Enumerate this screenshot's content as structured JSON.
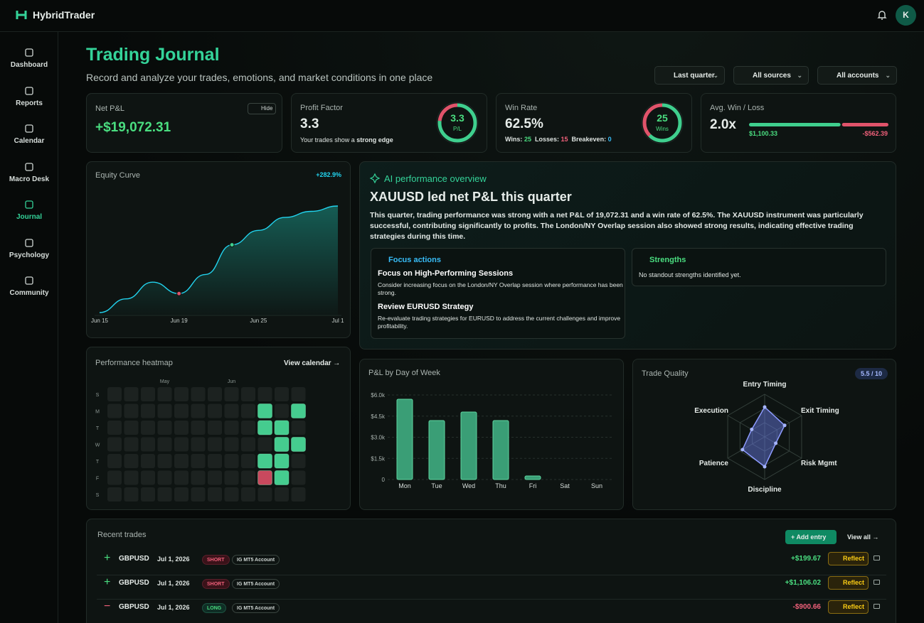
{
  "header": {
    "brand": "HybridTrader",
    "avatar": "K"
  },
  "nav": [
    {
      "label": "Dashboard"
    },
    {
      "label": "Reports"
    },
    {
      "label": "Calendar"
    },
    {
      "label": "Macro Desk"
    },
    {
      "label": "Journal",
      "active": true
    },
    {
      "label": "Psychology"
    },
    {
      "label": "Community"
    }
  ],
  "page": {
    "title": "Trading Journal",
    "subtitle": "Record and analyze your trades, emotions, and market conditions in one place",
    "filters": [
      "Last quarter",
      "All sources",
      "All accounts"
    ]
  },
  "stats": {
    "net_pnl": {
      "label": "Net P&L",
      "value": "+$19,072.31",
      "hide": "Hide"
    },
    "profit_factor": {
      "label": "Profit Factor",
      "value": 3.3,
      "note": "Your trades show a",
      "note_strong": "strong edge",
      "ring_unit": "P/L"
    },
    "win_rate": {
      "label": "Win Rate",
      "value": "62.5%",
      "wins_label": "Wins:",
      "wins": 25,
      "losses_label": "Losses:",
      "losses": 15,
      "breakeven_label": "Breakeven:",
      "breakeven": 0,
      "ring_unit": "Wins"
    },
    "avg_win_loss": {
      "label": "Avg. Win / Loss",
      "ratio": "2.0x",
      "avg_win": 1100.33,
      "avg_win_label": "$1,100.33",
      "avg_loss": 562.39,
      "avg_loss_label": "-$562.39"
    }
  },
  "equity": {
    "title": "Equity Curve",
    "change": "+282.9%",
    "categories": [
      "Jun 15",
      null,
      null,
      "Jun 19",
      null,
      null,
      "Jun 25",
      null,
      null,
      "Jul 1"
    ],
    "values": [
      1950,
      4290,
      7150,
      5200,
      8450,
      13520,
      15990,
      18200,
      19240,
      20150
    ]
  },
  "ai": {
    "title": "AI performance overview",
    "headline": "XAUUSD led net P&L this quarter",
    "body": "This quarter, trading performance was strong with a net P&L of 19,072.31 and a win rate of 62.5%. The XAUUSD instrument was particularly successful, contributing significantly to profits. The London/NY Overlap session also showed strong results, indicating effective trading strategies during this time.",
    "focus_title": "Focus actions",
    "focus_items": [
      {
        "title": "Focus on High-Performing Sessions",
        "text": "Consider increasing focus on the London/NY Overlap session where performance has been strong."
      },
      {
        "title": "Review EURUSD Strategy",
        "text": "Re-evaluate trading strategies for EURUSD to address the current challenges and improve profitability."
      }
    ],
    "strengths_title": "Strengths",
    "strengths_text": "No standout strengths identified yet."
  },
  "heatmap": {
    "title": "Performance heatmap",
    "link": "View calendar",
    "month_labels": [
      null,
      null,
      null,
      "May",
      null,
      null,
      null,
      "Jun",
      null,
      null,
      null,
      null
    ],
    "day_labels": [
      "S",
      "M",
      "T",
      "W",
      "T",
      "F",
      "S"
    ],
    "cells": [
      [
        null,
        null,
        null,
        null,
        null,
        null,
        null,
        null,
        null,
        null,
        null,
        null
      ],
      [
        null,
        null,
        null,
        null,
        null,
        null,
        null,
        null,
        null,
        1500,
        null,
        1500
      ],
      [
        null,
        null,
        null,
        null,
        null,
        null,
        null,
        null,
        null,
        1200,
        1500,
        null
      ],
      [
        null,
        null,
        null,
        null,
        null,
        null,
        null,
        null,
        null,
        null,
        1500,
        1500
      ],
      [
        null,
        null,
        null,
        null,
        null,
        null,
        null,
        null,
        null,
        1500,
        1500,
        null
      ],
      [
        null,
        null,
        null,
        null,
        null,
        null,
        null,
        null,
        null,
        -900,
        1200,
        null
      ],
      [
        null,
        null,
        null,
        null,
        null,
        null,
        null,
        null,
        null,
        null,
        null,
        null
      ]
    ]
  },
  "dow": {
    "title": "P&L by Day of Week",
    "categories": [
      "Mon",
      "Tue",
      "Wed",
      "Thu",
      "Fri",
      "Sat",
      "Sun"
    ],
    "values": [
      5700,
      4185,
      4790,
      4185,
      250,
      0,
      0
    ],
    "ylim": [
      0,
      6000
    ],
    "yticks": [
      0,
      {
        "value": 1500,
        "label": "$1.5k"
      },
      {
        "value": 3000,
        "label": "$3.0k"
      },
      {
        "value": 4500,
        "label": "$4.5k"
      },
      {
        "value": 6000,
        "label": "$6.0k"
      }
    ]
  },
  "quality": {
    "title": "Trade Quality",
    "score": "5.5 / 10",
    "axes": [
      "Entry Timing",
      "Exit Timing",
      "Risk Mgmt",
      "Discipline",
      "Patience",
      "Execution"
    ],
    "values": [
      7,
      5.4,
      3,
      7,
      6,
      3.5
    ],
    "rlim": [
      0,
      10
    ]
  },
  "trades": {
    "title": "Recent trades",
    "add": "Add entry",
    "view_all": "View all",
    "rows": [
      {
        "symbol": "GBPUSD",
        "date": "Jul 1, 2026",
        "side": "SHORT",
        "account": "IG MT5 Account",
        "pnl": "+$199.67",
        "action": "Reflect"
      },
      {
        "symbol": "GBPUSD",
        "date": "Jul 1, 2026",
        "side": "SHORT",
        "account": "IG MT5 Account",
        "pnl": "+$1,106.02",
        "action": "Reflect"
      },
      {
        "symbol": "GBPUSD",
        "date": "Jul 1, 2026",
        "side": "LONG",
        "account": "IG MT5 Account",
        "pnl": "-$900.66",
        "action": "Reflect"
      }
    ]
  }
}
